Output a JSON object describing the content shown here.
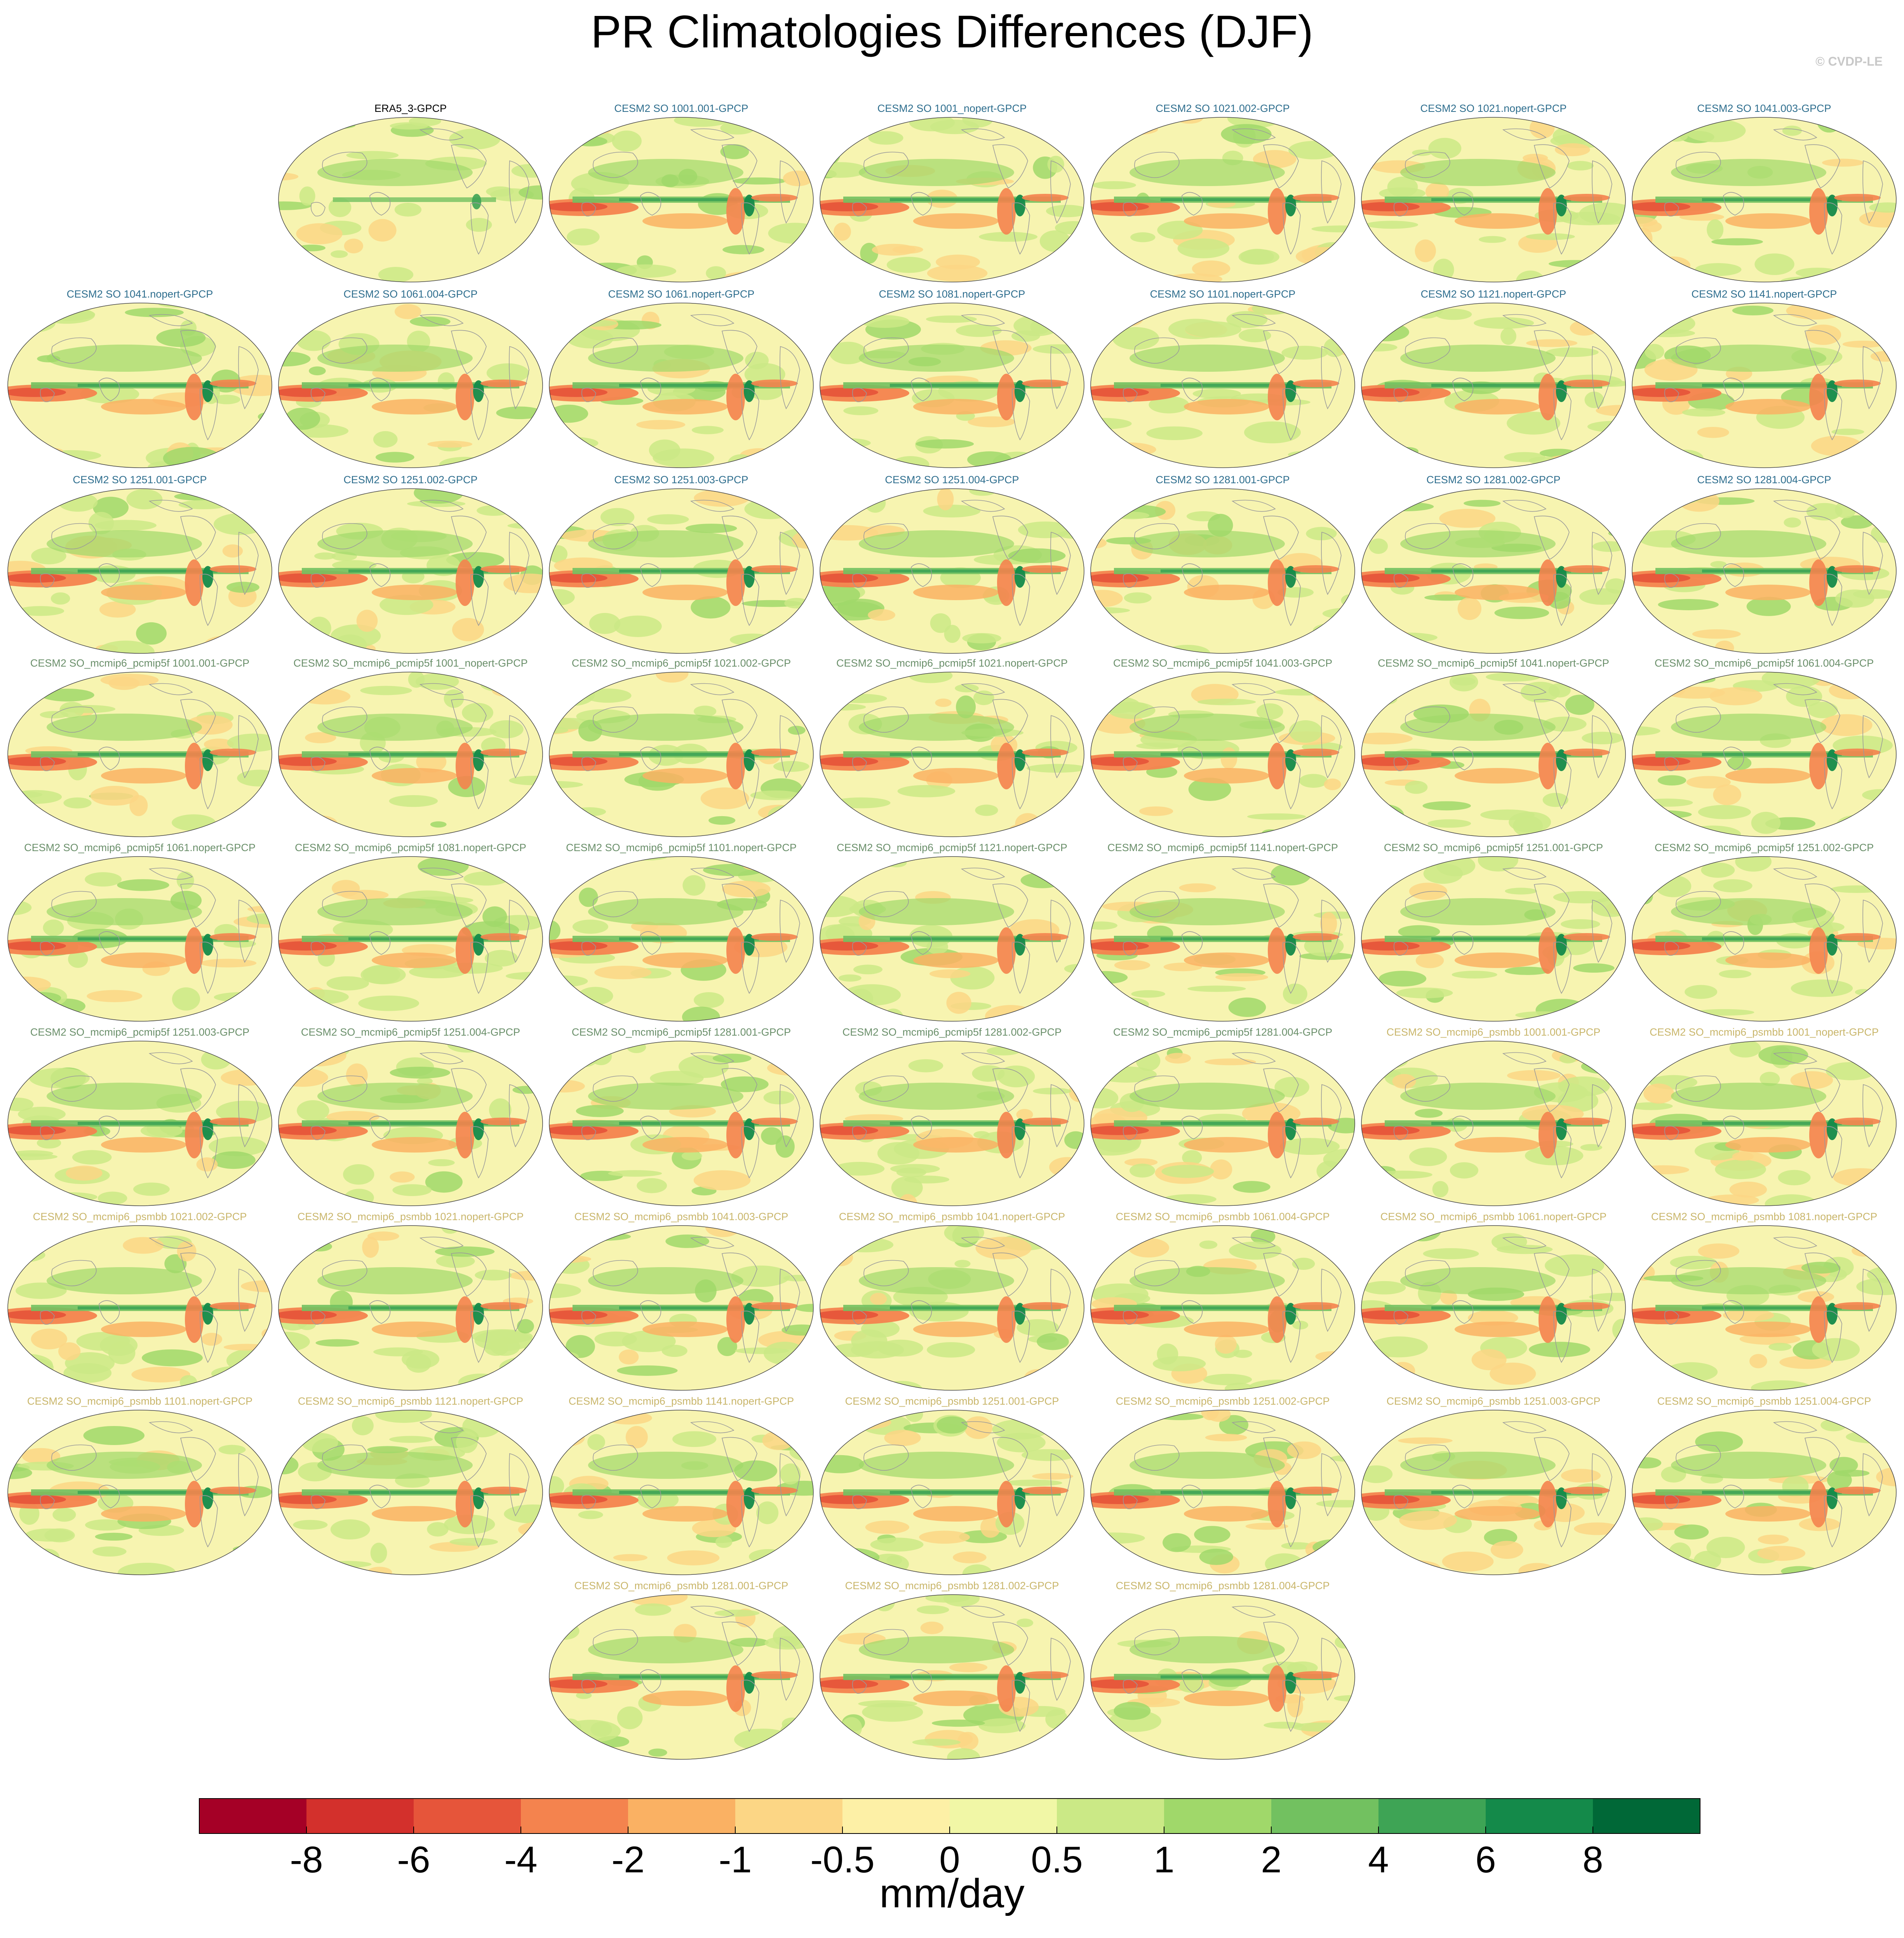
{
  "title": "PR Climatologies Differences (DJF)",
  "copyright": "© CVDP-LE",
  "colors": {
    "obs_label": "#000000",
    "so_label": "#2e6e8e",
    "pcmip5f_label": "#6a8f6a",
    "psmbb_label": "#c9b66b",
    "map_background": "#f7f4b0",
    "coast": "#9a9a9a"
  },
  "chart_data": {
    "type": "map-panels",
    "projection": "robinson",
    "variable": "PR",
    "season": "DJF",
    "units_label": "mm/day",
    "colorbar": {
      "tick_labels": [
        "-8",
        "-6",
        "-4",
        "-2",
        "-1",
        "-0.5",
        "0",
        "0.5",
        "1",
        "2",
        "4",
        "6",
        "8"
      ],
      "colors": [
        "#a50026",
        "#d3302c",
        "#e6553a",
        "#f4834e",
        "#fab163",
        "#fcd685",
        "#fdf0a6",
        "#f1f7a6",
        "#cbe986",
        "#a0d86a",
        "#72c160",
        "#3ea455",
        "#148a4a",
        "#006837"
      ]
    },
    "panels": [
      {
        "label": "ERA5_3-GPCP",
        "group": "obs"
      },
      {
        "label": "CESM2 SO 1001.001-GPCP",
        "group": "so"
      },
      {
        "label": "CESM2 SO 1001_nopert-GPCP",
        "group": "so"
      },
      {
        "label": "CESM2 SO 1021.002-GPCP",
        "group": "so"
      },
      {
        "label": "CESM2 SO 1021.nopert-GPCP",
        "group": "so"
      },
      {
        "label": "CESM2 SO 1041.003-GPCP",
        "group": "so"
      },
      {
        "label": "CESM2 SO 1041.nopert-GPCP",
        "group": "so"
      },
      {
        "label": "CESM2 SO 1061.004-GPCP",
        "group": "so"
      },
      {
        "label": "CESM2 SO 1061.nopert-GPCP",
        "group": "so"
      },
      {
        "label": "CESM2 SO 1081.nopert-GPCP",
        "group": "so"
      },
      {
        "label": "CESM2 SO 1101.nopert-GPCP",
        "group": "so"
      },
      {
        "label": "CESM2 SO 1121.nopert-GPCP",
        "group": "so"
      },
      {
        "label": "CESM2 SO 1141.nopert-GPCP",
        "group": "so"
      },
      {
        "label": "CESM2 SO 1251.001-GPCP",
        "group": "so"
      },
      {
        "label": "CESM2 SO 1251.002-GPCP",
        "group": "so"
      },
      {
        "label": "CESM2 SO 1251.003-GPCP",
        "group": "so"
      },
      {
        "label": "CESM2 SO 1251.004-GPCP",
        "group": "so"
      },
      {
        "label": "CESM2 SO 1281.001-GPCP",
        "group": "so"
      },
      {
        "label": "CESM2 SO 1281.002-GPCP",
        "group": "so"
      },
      {
        "label": "CESM2 SO 1281.004-GPCP",
        "group": "so"
      },
      {
        "label": "CESM2 SO_mcmip6_pcmip5f 1001.001-GPCP",
        "group": "pcmip5f"
      },
      {
        "label": "CESM2 SO_mcmip6_pcmip5f 1001_nopert-GPCP",
        "group": "pcmip5f"
      },
      {
        "label": "CESM2 SO_mcmip6_pcmip5f 1021.002-GPCP",
        "group": "pcmip5f"
      },
      {
        "label": "CESM2 SO_mcmip6_pcmip5f 1021.nopert-GPCP",
        "group": "pcmip5f"
      },
      {
        "label": "CESM2 SO_mcmip6_pcmip5f 1041.003-GPCP",
        "group": "pcmip5f"
      },
      {
        "label": "CESM2 SO_mcmip6_pcmip5f 1041.nopert-GPCP",
        "group": "pcmip5f"
      },
      {
        "label": "CESM2 SO_mcmip6_pcmip5f 1061.004-GPCP",
        "group": "pcmip5f"
      },
      {
        "label": "CESM2 SO_mcmip6_pcmip5f 1061.nopert-GPCP",
        "group": "pcmip5f"
      },
      {
        "label": "CESM2 SO_mcmip6_pcmip5f 1081.nopert-GPCP",
        "group": "pcmip5f"
      },
      {
        "label": "CESM2 SO_mcmip6_pcmip5f 1101.nopert-GPCP",
        "group": "pcmip5f"
      },
      {
        "label": "CESM2 SO_mcmip6_pcmip5f 1121.nopert-GPCP",
        "group": "pcmip5f"
      },
      {
        "label": "CESM2 SO_mcmip6_pcmip5f 1141.nopert-GPCP",
        "group": "pcmip5f"
      },
      {
        "label": "CESM2 SO_mcmip6_pcmip5f 1251.001-GPCP",
        "group": "pcmip5f"
      },
      {
        "label": "CESM2 SO_mcmip6_pcmip5f 1251.002-GPCP",
        "group": "pcmip5f"
      },
      {
        "label": "CESM2 SO_mcmip6_pcmip5f 1251.003-GPCP",
        "group": "pcmip5f"
      },
      {
        "label": "CESM2 SO_mcmip6_pcmip5f 1251.004-GPCP",
        "group": "pcmip5f"
      },
      {
        "label": "CESM2 SO_mcmip6_pcmip5f 1281.001-GPCP",
        "group": "pcmip5f"
      },
      {
        "label": "CESM2 SO_mcmip6_pcmip5f 1281.002-GPCP",
        "group": "pcmip5f"
      },
      {
        "label": "CESM2 SO_mcmip6_pcmip5f 1281.004-GPCP",
        "group": "pcmip5f"
      },
      {
        "label": "CESM2 SO_mcmip6_psmbb 1001.001-GPCP",
        "group": "psmbb"
      },
      {
        "label": "CESM2 SO_mcmip6_psmbb 1001_nopert-GPCP",
        "group": "psmbb"
      },
      {
        "label": "CESM2 SO_mcmip6_psmbb 1021.002-GPCP",
        "group": "psmbb"
      },
      {
        "label": "CESM2 SO_mcmip6_psmbb 1021.nopert-GPCP",
        "group": "psmbb"
      },
      {
        "label": "CESM2 SO_mcmip6_psmbb 1041.003-GPCP",
        "group": "psmbb"
      },
      {
        "label": "CESM2 SO_mcmip6_psmbb 1041.nopert-GPCP",
        "group": "psmbb"
      },
      {
        "label": "CESM2 SO_mcmip6_psmbb 1061.004-GPCP",
        "group": "psmbb"
      },
      {
        "label": "CESM2 SO_mcmip6_psmbb 1061.nopert-GPCP",
        "group": "psmbb"
      },
      {
        "label": "CESM2 SO_mcmip6_psmbb 1081.nopert-GPCP",
        "group": "psmbb"
      },
      {
        "label": "CESM2 SO_mcmip6_psmbb 1101.nopert-GPCP",
        "group": "psmbb"
      },
      {
        "label": "CESM2 SO_mcmip6_psmbb 1121.nopert-GPCP",
        "group": "psmbb"
      },
      {
        "label": "CESM2 SO_mcmip6_psmbb 1141.nopert-GPCP",
        "group": "psmbb"
      },
      {
        "label": "CESM2 SO_mcmip6_psmbb 1251.001-GPCP",
        "group": "psmbb"
      },
      {
        "label": "CESM2 SO_mcmip6_psmbb 1251.002-GPCP",
        "group": "psmbb"
      },
      {
        "label": "CESM2 SO_mcmip6_psmbb 1251.003-GPCP",
        "group": "psmbb"
      },
      {
        "label": "CESM2 SO_mcmip6_psmbb 1251.004-GPCP",
        "group": "psmbb"
      },
      {
        "label": "CESM2 SO_mcmip6_psmbb 1281.001-GPCP",
        "group": "psmbb"
      },
      {
        "label": "CESM2 SO_mcmip6_psmbb 1281.002-GPCP",
        "group": "psmbb"
      },
      {
        "label": "CESM2 SO_mcmip6_psmbb 1281.004-GPCP",
        "group": "psmbb"
      }
    ]
  }
}
